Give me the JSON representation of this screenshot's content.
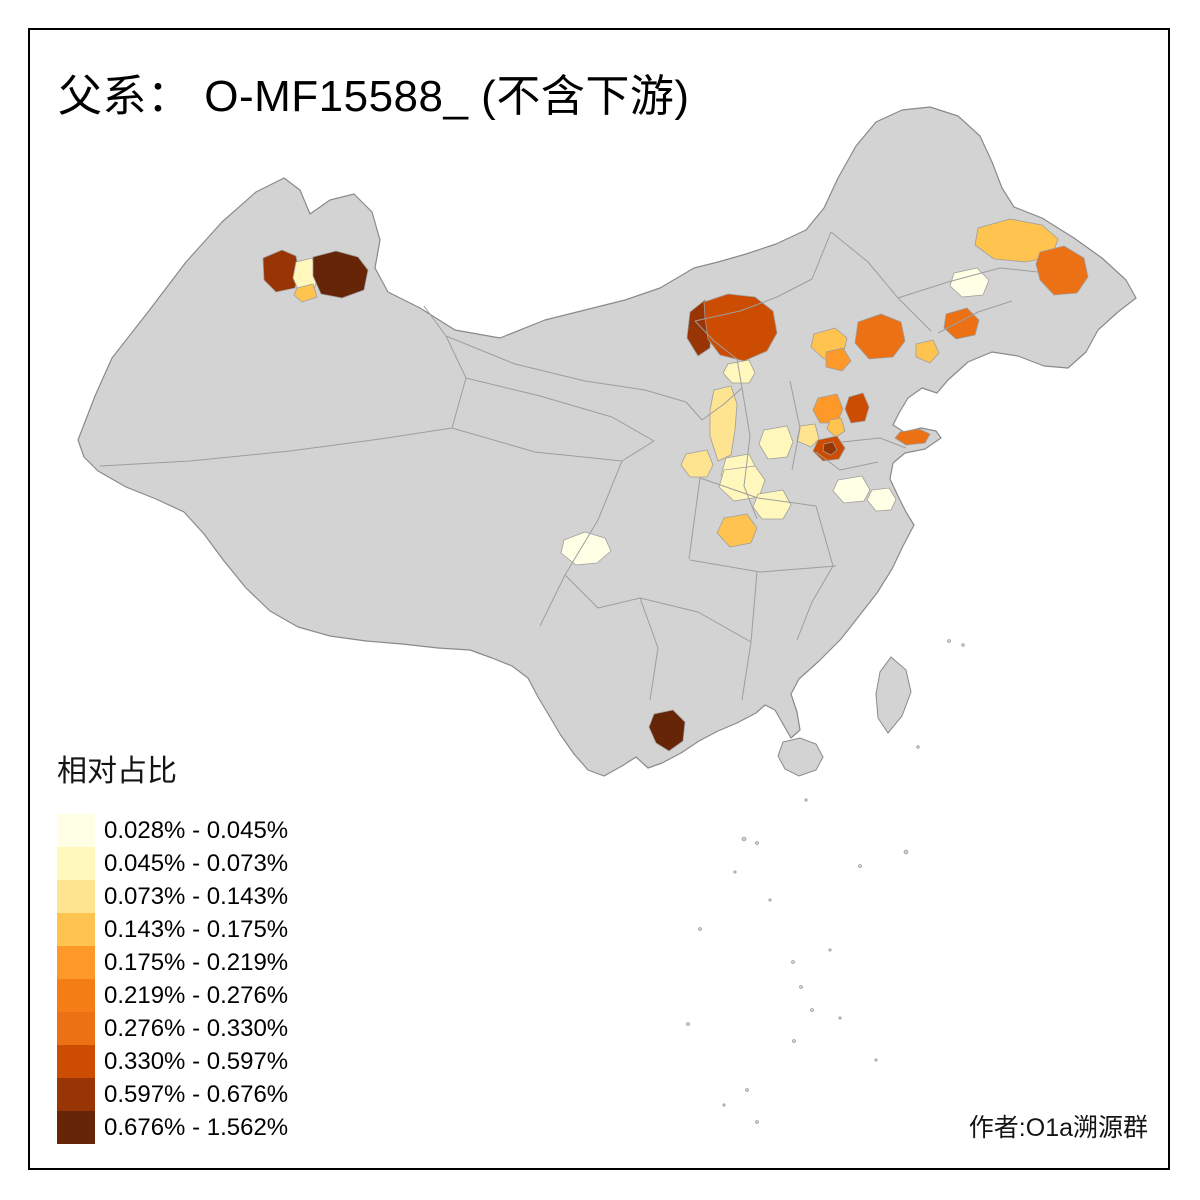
{
  "title": "父系： O-MF15588_ (不含下游)",
  "author": "作者:O1a溯源群",
  "legend": {
    "title": "相对占比",
    "items": [
      {
        "label": "0.028% - 0.045%",
        "color": "#FFFFE5"
      },
      {
        "label": "0.045% - 0.073%",
        "color": "#FFF7BC"
      },
      {
        "label": "0.073% - 0.143%",
        "color": "#FEE391"
      },
      {
        "label": "0.143% - 0.175%",
        "color": "#FEC44F"
      },
      {
        "label": "0.175% - 0.219%",
        "color": "#FE9929"
      },
      {
        "label": "0.219% - 0.276%",
        "color": "#F57D15"
      },
      {
        "label": "0.276% - 0.330%",
        "color": "#EC7014"
      },
      {
        "label": "0.330% - 0.597%",
        "color": "#CC4C02"
      },
      {
        "label": "0.597% - 0.676%",
        "color": "#993404"
      },
      {
        "label": "0.676% - 1.562%",
        "color": "#662506"
      }
    ]
  },
  "map": {
    "base_color": "#D3D3D3",
    "outer_boundary_color": "#8A8A8A",
    "inner_boundary_color": "#9E9E9E",
    "sea_background": "#FFFFFF",
    "frame_color": "#000000",
    "regions": [
      {
        "id": "xinjiang-ili-west",
        "class": 8
      },
      {
        "id": "xinjiang-ili-pale",
        "class": 1
      },
      {
        "id": "xinjiang-ili-east",
        "class": 9
      },
      {
        "id": "xinjiang-ili-south",
        "class": 3
      },
      {
        "id": "inner-mongolia-west-stripe",
        "class": 8
      },
      {
        "id": "inner-mongolia-baotou",
        "class": 7
      },
      {
        "id": "heilongjiang-qiqihar",
        "class": 3
      },
      {
        "id": "heilongjiang-harbin",
        "class": 6
      },
      {
        "id": "heilongjiang-daqing-pale",
        "class": 0
      },
      {
        "id": "jilin-changchun",
        "class": 6
      },
      {
        "id": "jilin-east",
        "class": 6
      },
      {
        "id": "liaoning-east",
        "class": 3
      },
      {
        "id": "liaoning-chaoyang",
        "class": 3
      },
      {
        "id": "liaoning-jinzhou",
        "class": 4
      },
      {
        "id": "beijing",
        "class": 4
      },
      {
        "id": "tangshan",
        "class": 7
      },
      {
        "id": "tianjin",
        "class": 3
      },
      {
        "id": "hebei-south",
        "class": 2
      },
      {
        "id": "shanxi-north-strip",
        "class": 2
      },
      {
        "id": "shanxi-south",
        "class": 1
      },
      {
        "id": "hebei-southwest",
        "class": 1
      },
      {
        "id": "jinan",
        "class": 7
      },
      {
        "id": "jinan-core",
        "class": 8
      },
      {
        "id": "shandong-peninsula",
        "class": 6
      },
      {
        "id": "henan-west",
        "class": 2
      },
      {
        "id": "henan-center",
        "class": 1
      },
      {
        "id": "shaanxi-south",
        "class": 3
      },
      {
        "id": "henan-east",
        "class": 1
      },
      {
        "id": "jiangsu-north",
        "class": 0
      },
      {
        "id": "jiangsu-center",
        "class": 0
      },
      {
        "id": "sichuan-chengdu",
        "class": 0
      },
      {
        "id": "yunnan-south",
        "class": 9
      },
      {
        "id": "hohhot-south",
        "class": 1
      }
    ]
  }
}
